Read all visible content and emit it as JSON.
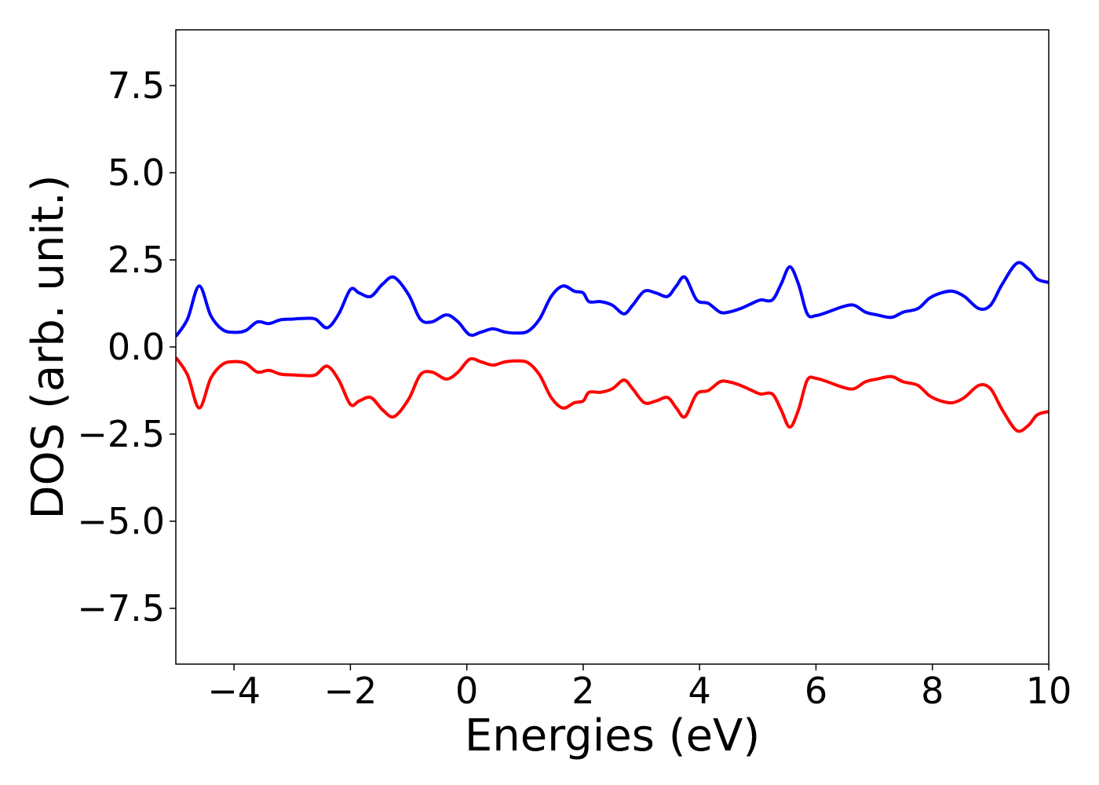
{
  "chart_data": {
    "type": "line",
    "title": "",
    "xlabel": "Energies (eV)",
    "ylabel": "DOS (arb. unit.)",
    "xlim": [
      -5,
      10
    ],
    "ylim": [
      -9.1,
      9.1
    ],
    "xticks": [
      -4,
      -2,
      0,
      2,
      4,
      6,
      8,
      10
    ],
    "xtick_labels": [
      "−4",
      "−2",
      "0",
      "2",
      "4",
      "6",
      "8",
      "10"
    ],
    "yticks": [
      7.5,
      5.0,
      2.5,
      0.0,
      -2.5,
      -5.0,
      -7.5
    ],
    "ytick_labels": [
      "7.5",
      "5.0",
      "2.5",
      "0.0",
      "−2.5",
      "−5.0",
      "−7.5"
    ],
    "grid": false,
    "legend": false,
    "series": [
      {
        "color": "#0000ff",
        "x": [
          -5.0,
          -4.8,
          -4.6,
          -4.4,
          -4.2,
          -4.0,
          -3.8,
          -3.6,
          -3.4,
          -3.2,
          -3.0,
          -2.8,
          -2.6,
          -2.4,
          -2.2,
          -2.0,
          -1.85,
          -1.65,
          -1.45,
          -1.25,
          -1.0,
          -0.8,
          -0.6,
          -0.35,
          -0.15,
          0.05,
          0.25,
          0.45,
          0.65,
          0.85,
          1.05,
          1.25,
          1.45,
          1.65,
          1.85,
          2.0,
          2.1,
          2.3,
          2.5,
          2.7,
          2.85,
          3.05,
          3.25,
          3.45,
          3.6,
          3.75,
          3.95,
          4.15,
          4.35,
          4.5,
          4.7,
          4.9,
          5.05,
          5.25,
          5.4,
          5.55,
          5.7,
          5.85,
          6.0,
          6.2,
          6.45,
          6.65,
          6.85,
          7.05,
          7.3,
          7.5,
          7.75,
          7.95,
          8.15,
          8.35,
          8.55,
          8.8,
          9.0,
          9.2,
          9.45,
          9.65,
          9.8,
          10.0
        ],
        "values": [
          0.3,
          0.8,
          1.75,
          0.9,
          0.5,
          0.42,
          0.47,
          0.72,
          0.67,
          0.78,
          0.8,
          0.82,
          0.8,
          0.55,
          0.95,
          1.65,
          1.55,
          1.45,
          1.8,
          2.0,
          1.5,
          0.8,
          0.72,
          0.92,
          0.72,
          0.35,
          0.43,
          0.52,
          0.43,
          0.4,
          0.45,
          0.8,
          1.45,
          1.75,
          1.6,
          1.55,
          1.3,
          1.3,
          1.2,
          0.95,
          1.2,
          1.6,
          1.55,
          1.45,
          1.75,
          2.0,
          1.35,
          1.25,
          1.0,
          1.0,
          1.1,
          1.25,
          1.35,
          1.35,
          1.8,
          2.3,
          1.8,
          0.95,
          0.9,
          1.0,
          1.15,
          1.2,
          1.0,
          0.92,
          0.85,
          1.0,
          1.1,
          1.4,
          1.55,
          1.6,
          1.45,
          1.1,
          1.2,
          1.8,
          2.4,
          2.25,
          1.95,
          1.85
        ]
      },
      {
        "color": "#ff0000",
        "x": [
          -5.0,
          -4.8,
          -4.6,
          -4.4,
          -4.2,
          -4.0,
          -3.8,
          -3.6,
          -3.4,
          -3.2,
          -3.0,
          -2.8,
          -2.6,
          -2.4,
          -2.2,
          -2.0,
          -1.85,
          -1.65,
          -1.45,
          -1.25,
          -1.0,
          -0.8,
          -0.6,
          -0.35,
          -0.15,
          0.05,
          0.25,
          0.45,
          0.65,
          0.85,
          1.05,
          1.25,
          1.45,
          1.65,
          1.85,
          2.0,
          2.1,
          2.3,
          2.5,
          2.7,
          2.85,
          3.05,
          3.25,
          3.45,
          3.6,
          3.75,
          3.95,
          4.15,
          4.35,
          4.5,
          4.7,
          4.9,
          5.05,
          5.25,
          5.4,
          5.55,
          5.7,
          5.85,
          6.0,
          6.2,
          6.45,
          6.65,
          6.85,
          7.05,
          7.3,
          7.5,
          7.75,
          7.95,
          8.15,
          8.35,
          8.55,
          8.8,
          9.0,
          9.2,
          9.45,
          9.65,
          9.8,
          10.0
        ],
        "values": [
          -0.3,
          -0.8,
          -1.75,
          -0.9,
          -0.5,
          -0.42,
          -0.47,
          -0.72,
          -0.67,
          -0.78,
          -0.8,
          -0.82,
          -0.8,
          -0.55,
          -0.95,
          -1.65,
          -1.55,
          -1.45,
          -1.8,
          -2.0,
          -1.5,
          -0.8,
          -0.72,
          -0.92,
          -0.72,
          -0.35,
          -0.43,
          -0.52,
          -0.43,
          -0.4,
          -0.45,
          -0.8,
          -1.45,
          -1.75,
          -1.6,
          -1.55,
          -1.3,
          -1.3,
          -1.2,
          -0.95,
          -1.2,
          -1.6,
          -1.55,
          -1.45,
          -1.75,
          -2.0,
          -1.35,
          -1.25,
          -1.0,
          -1.0,
          -1.1,
          -1.25,
          -1.35,
          -1.35,
          -1.8,
          -2.3,
          -1.8,
          -0.95,
          -0.9,
          -1.0,
          -1.15,
          -1.2,
          -1.0,
          -0.92,
          -0.85,
          -1.0,
          -1.1,
          -1.4,
          -1.55,
          -1.6,
          -1.45,
          -1.1,
          -1.2,
          -1.8,
          -2.4,
          -2.25,
          -1.95,
          -1.85
        ]
      }
    ]
  }
}
